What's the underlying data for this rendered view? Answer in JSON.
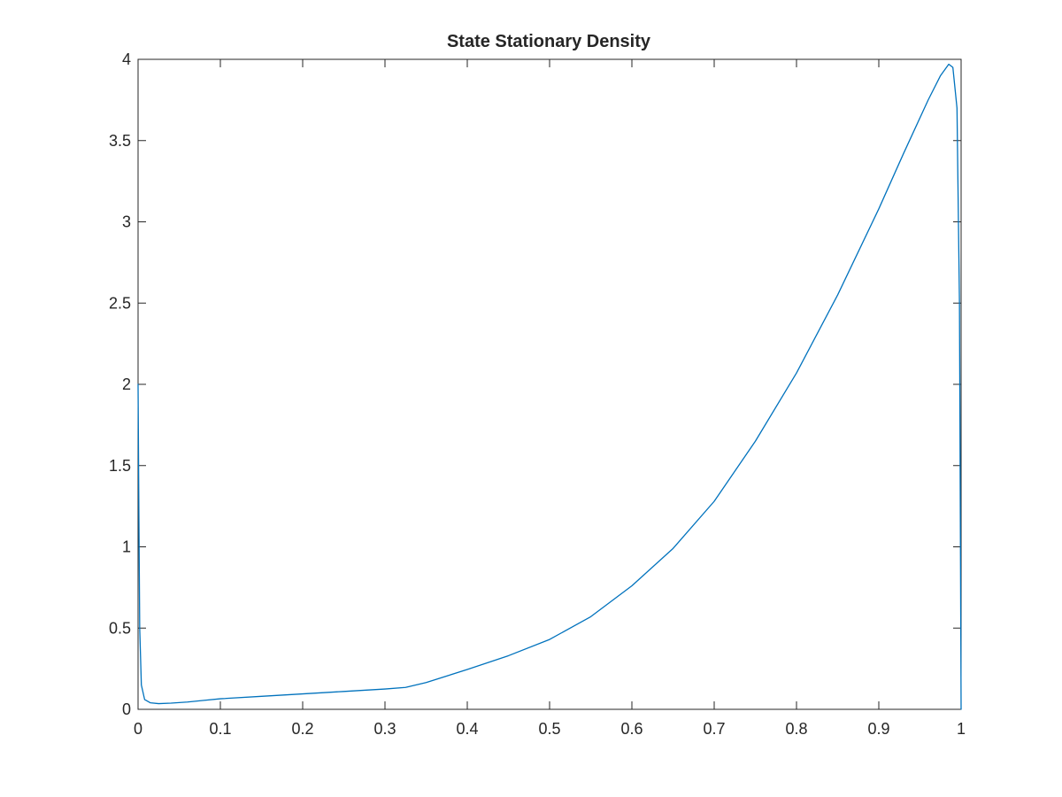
{
  "chart_data": {
    "type": "line",
    "title": "State Stationary Density",
    "xlabel": "",
    "ylabel": "",
    "xlim": [
      0,
      1
    ],
    "ylim": [
      0,
      4
    ],
    "xticks": [
      0,
      0.1,
      0.2,
      0.3,
      0.4,
      0.5,
      0.6,
      0.7,
      0.8,
      0.9,
      1
    ],
    "yticks": [
      0,
      0.5,
      1,
      1.5,
      2,
      2.5,
      3,
      3.5,
      4
    ],
    "xtick_labels": [
      "0",
      "0.1",
      "0.2",
      "0.3",
      "0.4",
      "0.5",
      "0.6",
      "0.7",
      "0.8",
      "0.9",
      "1"
    ],
    "ytick_labels": [
      "0",
      "0.5",
      "1",
      "1.5",
      "2",
      "2.5",
      "3",
      "3.5",
      "4"
    ],
    "grid": false,
    "box": true,
    "colors": {
      "line": "#0072BD",
      "axes": "#262626",
      "background": "#ffffff"
    },
    "series": [
      {
        "x": [
          0,
          0.001,
          0.002,
          0.004,
          0.008,
          0.015,
          0.025,
          0.04,
          0.06,
          0.08,
          0.1,
          0.15,
          0.2,
          0.25,
          0.3,
          0.325,
          0.35,
          0.4,
          0.45,
          0.5,
          0.55,
          0.6,
          0.65,
          0.7,
          0.75,
          0.8,
          0.85,
          0.9,
          0.93,
          0.96,
          0.975,
          0.985,
          0.99,
          0.995,
          0.998,
          1.0
        ],
        "y": [
          2.0,
          1.2,
          0.5,
          0.15,
          0.06,
          0.04,
          0.035,
          0.038,
          0.045,
          0.055,
          0.065,
          0.08,
          0.095,
          0.11,
          0.125,
          0.135,
          0.165,
          0.245,
          0.33,
          0.43,
          0.57,
          0.76,
          0.99,
          1.28,
          1.65,
          2.07,
          2.55,
          3.08,
          3.42,
          3.75,
          3.9,
          3.97,
          3.95,
          3.7,
          2.5,
          0.0
        ]
      }
    ]
  }
}
